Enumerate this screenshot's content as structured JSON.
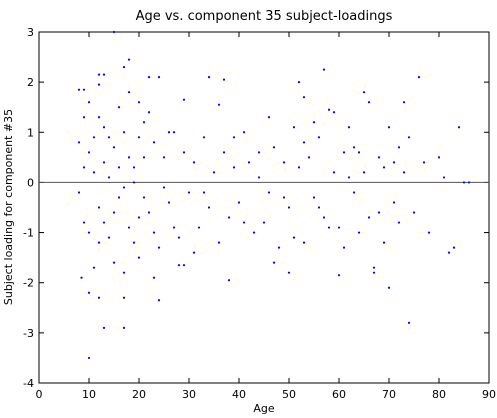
{
  "chart_data": {
    "type": "scatter",
    "title": "Age vs. component 35 subject-loadings",
    "xlabel": "Age",
    "ylabel": "Subject loading for component #35",
    "xlim": [
      0,
      90
    ],
    "xticks": [
      0,
      10,
      20,
      30,
      40,
      50,
      60,
      70,
      80,
      90
    ],
    "ylim": [
      -4,
      3
    ],
    "yticks": [
      -4,
      -3,
      -2,
      -1,
      0,
      1,
      2,
      3
    ],
    "hline": 0,
    "grid": false,
    "series": [
      {
        "color": "#0000ff",
        "x": [
          8,
          9,
          8.5,
          10,
          13,
          17,
          74,
          15,
          18,
          17,
          12,
          13,
          22,
          24,
          34,
          57,
          76,
          52,
          37,
          12,
          20,
          29,
          36,
          46,
          53,
          58,
          59,
          65,
          66,
          73,
          84,
          10,
          12,
          17,
          24,
          23,
          29,
          28,
          38,
          50,
          60,
          67,
          70,
          67,
          82,
          85,
          86,
          80,
          81,
          83,
          78,
          77,
          75,
          74,
          72,
          71,
          70,
          69,
          68,
          64,
          63,
          62,
          61,
          60,
          59,
          57,
          56,
          55,
          54,
          53,
          52,
          51,
          50,
          49,
          48,
          47,
          46,
          45,
          44,
          43,
          42,
          41,
          40,
          39,
          38,
          37,
          36,
          35,
          34,
          33,
          32,
          31,
          30,
          29,
          28,
          27,
          26,
          25,
          24,
          23,
          22,
          21,
          20,
          19,
          18,
          17,
          16,
          15,
          14,
          13,
          12,
          11,
          10,
          9,
          8,
          9,
          10,
          11,
          12,
          13,
          14,
          15,
          16,
          17,
          18,
          19,
          20,
          21,
          22,
          23,
          25,
          26,
          27,
          31,
          33,
          39,
          41,
          44,
          47,
          49,
          51,
          53,
          55,
          56,
          58,
          61,
          62,
          63,
          64,
          65,
          66,
          68,
          69,
          71,
          72,
          73,
          8,
          9,
          10,
          11,
          12,
          13,
          14,
          15,
          16,
          17,
          18,
          19,
          20,
          21
        ],
        "values": [
          1.85,
          1.85,
          -1.9,
          -3.5,
          -2.9,
          -2.9,
          -2.8,
          3.0,
          2.45,
          2.3,
          2.15,
          2.15,
          2.1,
          2.1,
          2.1,
          2.25,
          2.1,
          2.0,
          2.05,
          1.95,
          1.6,
          1.65,
          1.55,
          1.3,
          1.7,
          1.45,
          1.4,
          1.8,
          1.6,
          1.6,
          1.1,
          -2.2,
          -2.3,
          -2.3,
          -2.35,
          -1.9,
          -1.65,
          -1.65,
          -1.95,
          -1.8,
          -1.85,
          -1.7,
          -2.1,
          -1.8,
          -1.4,
          0,
          0,
          0.5,
          0.1,
          -1.3,
          -1,
          0.4,
          -0.6,
          0.9,
          0.7,
          -0.4,
          1.1,
          0.3,
          -0.6,
          0.6,
          -0.2,
          1.1,
          0.6,
          -0.9,
          0.2,
          -0.7,
          0.9,
          -0.3,
          0.5,
          -1.2,
          0.3,
          1.1,
          -0.5,
          0.4,
          -1.3,
          0.7,
          -0.2,
          -0.8,
          0.1,
          -1.0,
          0.4,
          1.0,
          -0.4,
          0.3,
          -0.7,
          0.6,
          -1.2,
          0.2,
          -0.5,
          0.9,
          -0.9,
          0.4,
          -0.2,
          0.6,
          -1.1,
          1.0,
          -0.4,
          0.5,
          -1.3,
          0.8,
          -0.6,
          1.2,
          -1.5,
          0.3,
          -0.9,
          1.0,
          -0.3,
          0.7,
          -1.1,
          0.4,
          -0.5,
          0.9,
          -1.0,
          0.3,
          -0.2,
          -0.8,
          0.6,
          -1.7,
          1.3,
          -0.8,
          0.1,
          -1.6,
          1.5,
          -0.1,
          0.5,
          -1.2,
          0.9,
          -0.3,
          1.4,
          -1.0,
          -0.1,
          1.0,
          -0.9,
          -1.4,
          -0.2,
          0.9,
          -0.8,
          0.6,
          -1.6,
          -0.3,
          -1.1,
          0.8,
          1.2,
          -0.5,
          -0.9,
          -1.3,
          0.1,
          0.7,
          -1.0,
          0.2,
          -0.7,
          0.5,
          -1.2,
          0.4,
          -0.8,
          0.2,
          0.8,
          1.3,
          1.6,
          0.2,
          -1.2,
          1.1,
          0.9,
          -0.6,
          0.3,
          -1.8,
          1.8,
          0.0,
          -0.7,
          0.5
        ]
      }
    ]
  }
}
